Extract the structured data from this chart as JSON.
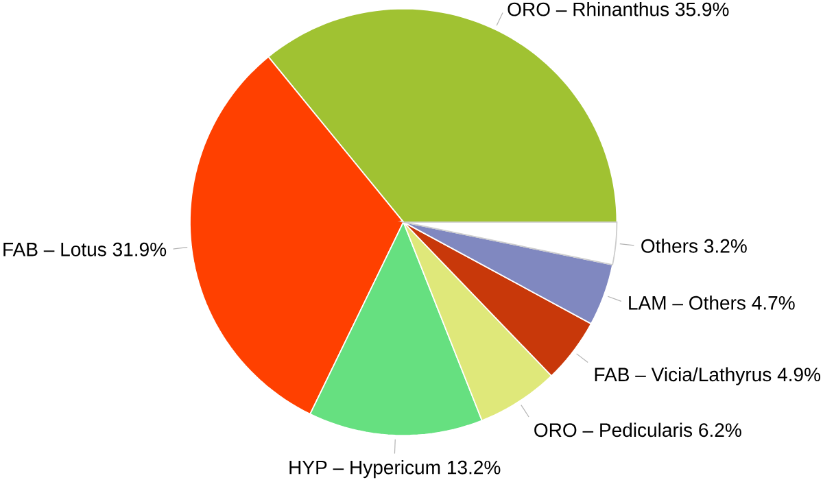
{
  "chart_data": {
    "type": "pie",
    "categories": [
      "ORO – Rhinanthus",
      "FAB – Lotus",
      "HYP – Hypericum",
      "ORO – Pedicularis",
      "FAB – Vicia/Lathyrus",
      "LAM – Others",
      "Others"
    ],
    "values": [
      35.9,
      31.9,
      13.2,
      6.2,
      4.9,
      4.7,
      3.2
    ],
    "value_labels": [
      "35.9%",
      "31.9%",
      "13.2%",
      "6.2%",
      "4.9%",
      "4.7%",
      "3.2%"
    ],
    "colors": [
      "#a0c232",
      "#ff4000",
      "#66e080",
      "#dfe87a",
      "#c8380a",
      "#8088c0",
      "#ffffff"
    ]
  }
}
